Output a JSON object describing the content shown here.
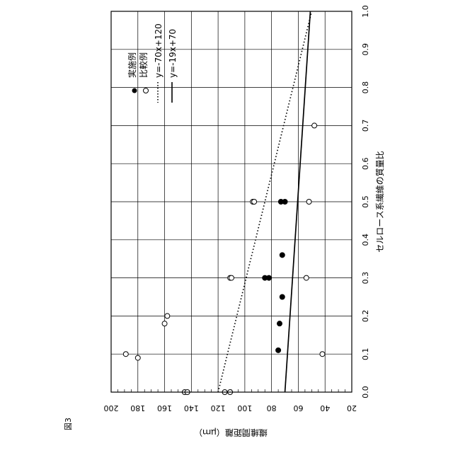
{
  "figure_label": "図3",
  "chart_data": {
    "type": "scatter",
    "xlabel": "セルロース系繊維の質量比",
    "ylabel": "繊維間距離（μｍ）",
    "xlim": [
      0.0,
      1.0
    ],
    "ylim": [
      20,
      200
    ],
    "x_ticks": [
      "0.0",
      "0.1",
      "0.2",
      "0.3",
      "0.4",
      "0.5",
      "0.6",
      "0.7",
      "0.8",
      "0.9",
      "1.0"
    ],
    "y_ticks": [
      "20",
      "40",
      "60",
      "80",
      "100",
      "120",
      "140",
      "160",
      "180",
      "200"
    ],
    "grid": true,
    "orientation": "rotated 90° clockwise",
    "legend_position": "top-right",
    "series": [
      {
        "name": "実施例",
        "marker": "filled-circle",
        "color": "#000000",
        "points": [
          {
            "x": 0.11,
            "y": 75
          },
          {
            "x": 0.18,
            "y": 74
          },
          {
            "x": 0.25,
            "y": 72
          },
          {
            "x": 0.3,
            "y": 85
          },
          {
            "x": 0.3,
            "y": 82
          },
          {
            "x": 0.36,
            "y": 72
          },
          {
            "x": 0.5,
            "y": 73
          },
          {
            "x": 0.5,
            "y": 70
          }
        ]
      },
      {
        "name": "比較例",
        "marker": "open-circle",
        "color": "#000000",
        "points": [
          {
            "x": 0.0,
            "y": 145
          },
          {
            "x": 0.0,
            "y": 143
          },
          {
            "x": 0.0,
            "y": 115
          },
          {
            "x": 0.0,
            "y": 111
          },
          {
            "x": 0.09,
            "y": 180
          },
          {
            "x": 0.1,
            "y": 189
          },
          {
            "x": 0.1,
            "y": 42
          },
          {
            "x": 0.18,
            "y": 160
          },
          {
            "x": 0.2,
            "y": 158
          },
          {
            "x": 0.3,
            "y": 111
          },
          {
            "x": 0.3,
            "y": 110
          },
          {
            "x": 0.3,
            "y": 54
          },
          {
            "x": 0.5,
            "y": 94
          },
          {
            "x": 0.5,
            "y": 93
          },
          {
            "x": 0.5,
            "y": 52
          },
          {
            "x": 0.7,
            "y": 48
          }
        ]
      }
    ],
    "lines": [
      {
        "name": "y=-70x+120",
        "style": "dotted",
        "slope": -70,
        "intercept": 120
      },
      {
        "name": "y=-19x+70",
        "style": "solid",
        "slope": -19,
        "intercept": 70
      }
    ]
  }
}
